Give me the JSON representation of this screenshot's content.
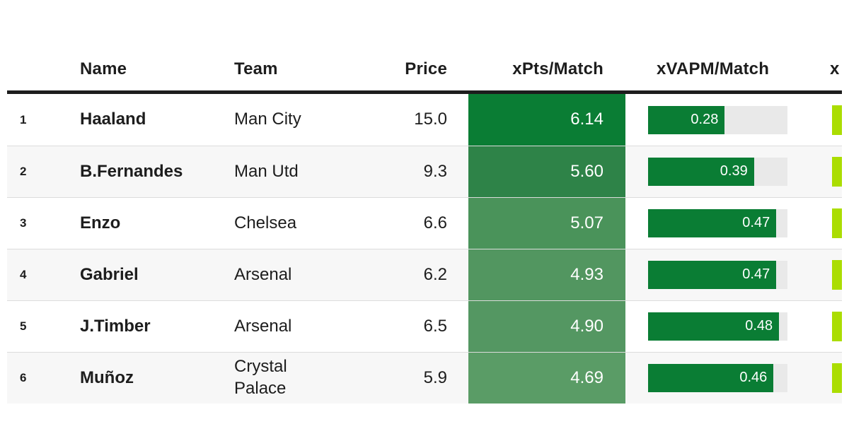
{
  "chart_data": {
    "type": "table",
    "title": "",
    "columns": [
      "",
      "Name",
      "Team",
      "Price",
      "xPts/Match",
      "xVAPM/Match",
      "x"
    ],
    "rows": [
      {
        "rank": "1",
        "name": "Haaland",
        "team": "Man City",
        "price": "15.0",
        "xpts": "6.14",
        "xvapm": "0.28"
      },
      {
        "rank": "2",
        "name": "B.Fernandes",
        "team": "Man Utd",
        "price": "9.3",
        "xpts": "5.60",
        "xvapm": "0.39"
      },
      {
        "rank": "3",
        "name": "Enzo",
        "team": "Chelsea",
        "price": "6.6",
        "xpts": "5.07",
        "xvapm": "0.47"
      },
      {
        "rank": "4",
        "name": "Gabriel",
        "team": "Arsenal",
        "price": "6.2",
        "xpts": "4.93",
        "xvapm": "0.47"
      },
      {
        "rank": "5",
        "name": "J.Timber",
        "team": "Arsenal",
        "price": "6.5",
        "xpts": "4.90",
        "xvapm": "0.48"
      },
      {
        "rank": "6",
        "name": "Muñoz",
        "team": "Crystal Palace",
        "price": "5.9",
        "xpts": "4.69",
        "xvapm": "0.46"
      }
    ],
    "xvapm_bar": {
      "scale_max": 0.51,
      "fill_percents": [
        55,
        76,
        92,
        92,
        94,
        90
      ]
    },
    "xpts_cell_colors": [
      "#0a7d34",
      "#2e8348",
      "#4a935a",
      "#529660",
      "#549762",
      "#5a9c66"
    ],
    "row_shades": [
      "white",
      "gray",
      "white",
      "gray",
      "white",
      "gray"
    ],
    "last_column_clipped_label": "x",
    "layout_hints": {
      "alternating_rows": true,
      "xpts_rendering": "full-cell background shaded by value, white right-aligned text",
      "xvapm_rendering": "horizontal data bar with value inside fill",
      "last_column_rendering": "clipped chartreuse data bar at right edge"
    }
  },
  "header": {
    "rank": "",
    "name": "Name",
    "team": "Team",
    "price": "Price",
    "xpts": "xPts/Match",
    "xvapm": "xVAPM/Match",
    "last": "x"
  },
  "colors": {
    "accent_green_dark": "#0a7d34",
    "bar_track_gray": "#e9e9e9",
    "chartreuse_bar": "#abdd02",
    "row_alt_gray": "#f7f7f7",
    "header_rule_black": "#1d1d1d",
    "row_divider": "#dcdcdc",
    "text_dark": "#1d1d1d"
  }
}
